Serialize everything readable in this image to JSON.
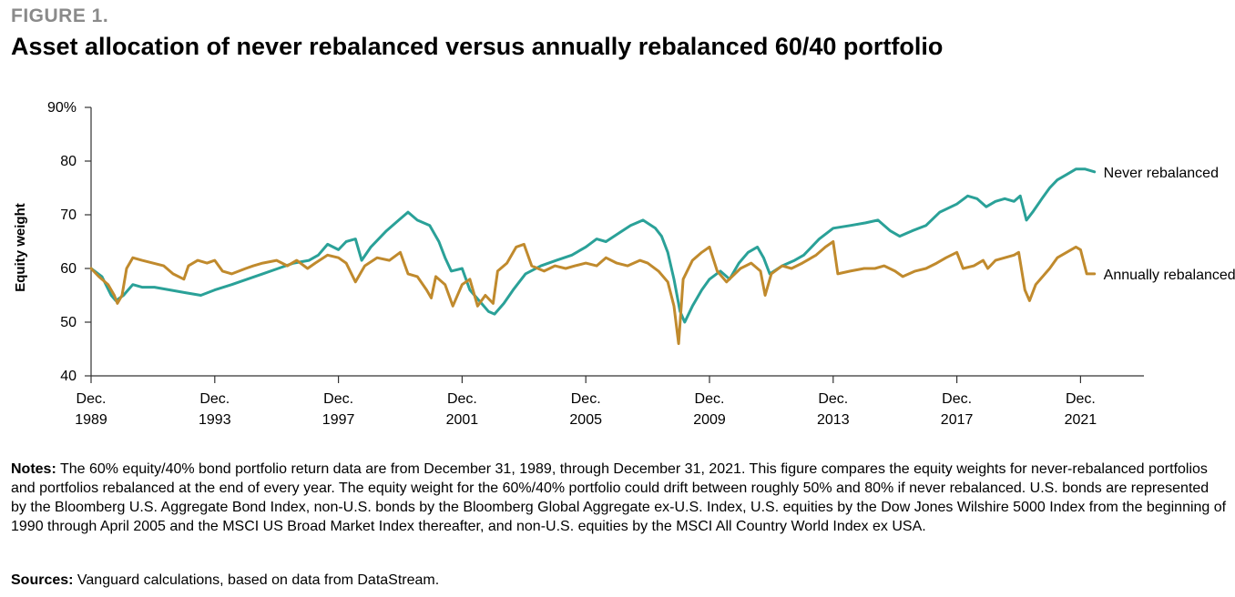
{
  "figure_label": "FIGURE 1.",
  "title": "Asset allocation of never rebalanced versus annually rebalanced 60/40 portfolio",
  "notes": {
    "label": "Notes:",
    "text": " The 60% equity/40% bond portfolio return data are from December 31, 1989, through December 31, 2021. This figure compares the equity weights for never-rebalanced portfolios and portfolios rebalanced at the end of every year. The equity weight for the 60%/40% portfolio could drift between roughly 50% and 80% if never rebalanced. U.S. bonds are represented by the Bloomberg U.S. Aggregate Bond Index, non-U.S. bonds by the Bloomberg Global Aggregate ex-U.S. Index, U.S. equities by the Dow Jones Wilshire 5000 Index from the beginning of 1990 through April 2005 and the MSCI US Broad Market Index thereafter, and non-U.S. equities by the MSCI All Country World Index ex USA."
  },
  "sources": {
    "label": "Sources:",
    "text": " Vanguard calculations, based on data from DataStream."
  },
  "colors": {
    "never": "#2aa198",
    "annual": "#c08a2d",
    "axis": "#333333"
  },
  "chart_data": {
    "type": "line",
    "title": "",
    "xlabel": "",
    "ylabel": "Equity weight",
    "ylim": [
      40,
      90
    ],
    "yticks": [
      {
        "value": 40,
        "label": "40"
      },
      {
        "value": 50,
        "label": "50"
      },
      {
        "value": 60,
        "label": "60"
      },
      {
        "value": 70,
        "label": "70"
      },
      {
        "value": 80,
        "label": "80"
      },
      {
        "value": 90,
        "label": "90%"
      }
    ],
    "xlim": [
      1989.95,
      2024.0
    ],
    "xticks": [
      {
        "value": 1989.95,
        "line1": "Dec.",
        "line2": "1989"
      },
      {
        "value": 1993.95,
        "line1": "Dec.",
        "line2": "1993"
      },
      {
        "value": 1997.95,
        "line1": "Dec.",
        "line2": "1997"
      },
      {
        "value": 2001.95,
        "line1": "Dec.",
        "line2": "2001"
      },
      {
        "value": 2005.95,
        "line1": "Dec.",
        "line2": "2005"
      },
      {
        "value": 2009.95,
        "line1": "Dec.",
        "line2": "2009"
      },
      {
        "value": 2013.95,
        "line1": "Dec.",
        "line2": "2013"
      },
      {
        "value": 2017.95,
        "line1": "Dec.",
        "line2": "2017"
      },
      {
        "value": 2021.95,
        "line1": "Dec.",
        "line2": "2021"
      }
    ],
    "grid": false,
    "legend": "inline labels at right end of lines",
    "series": [
      {
        "name": "Never rebalanced",
        "color": "#2aa198",
        "points": [
          [
            1989.95,
            60.0
          ],
          [
            1990.3,
            58.5
          ],
          [
            1990.6,
            55.0
          ],
          [
            1990.75,
            54.0
          ],
          [
            1991.0,
            55.0
          ],
          [
            1991.3,
            57.0
          ],
          [
            1991.6,
            56.5
          ],
          [
            1992.0,
            56.5
          ],
          [
            1992.5,
            56.0
          ],
          [
            1993.0,
            55.5
          ],
          [
            1993.5,
            55.0
          ],
          [
            1993.95,
            56.0
          ],
          [
            1994.5,
            57.0
          ],
          [
            1995.0,
            58.0
          ],
          [
            1995.5,
            59.0
          ],
          [
            1996.0,
            60.0
          ],
          [
            1996.5,
            61.0
          ],
          [
            1997.0,
            61.5
          ],
          [
            1997.3,
            62.5
          ],
          [
            1997.6,
            64.5
          ],
          [
            1997.95,
            63.5
          ],
          [
            1998.2,
            65.0
          ],
          [
            1998.5,
            65.5
          ],
          [
            1998.7,
            61.5
          ],
          [
            1999.0,
            64.0
          ],
          [
            1999.5,
            67.0
          ],
          [
            1999.9,
            69.0
          ],
          [
            2000.2,
            70.5
          ],
          [
            2000.5,
            69.0
          ],
          [
            2000.9,
            68.0
          ],
          [
            2001.2,
            65.0
          ],
          [
            2001.4,
            62.0
          ],
          [
            2001.6,
            59.5
          ],
          [
            2001.95,
            60.0
          ],
          [
            2002.2,
            56.0
          ],
          [
            2002.5,
            54.0
          ],
          [
            2002.8,
            52.0
          ],
          [
            2003.0,
            51.5
          ],
          [
            2003.3,
            53.5
          ],
          [
            2003.6,
            56.0
          ],
          [
            2004.0,
            59.0
          ],
          [
            2004.5,
            60.5
          ],
          [
            2005.0,
            61.5
          ],
          [
            2005.5,
            62.5
          ],
          [
            2005.95,
            64.0
          ],
          [
            2006.3,
            65.5
          ],
          [
            2006.6,
            65.0
          ],
          [
            2007.0,
            66.5
          ],
          [
            2007.4,
            68.0
          ],
          [
            2007.8,
            69.0
          ],
          [
            2008.2,
            67.5
          ],
          [
            2008.4,
            66.0
          ],
          [
            2008.6,
            63.0
          ],
          [
            2008.8,
            58.0
          ],
          [
            2009.0,
            52.0
          ],
          [
            2009.15,
            50.0
          ],
          [
            2009.4,
            53.0
          ],
          [
            2009.7,
            56.0
          ],
          [
            2009.95,
            58.0
          ],
          [
            2010.3,
            59.5
          ],
          [
            2010.6,
            58.0
          ],
          [
            2010.9,
            61.0
          ],
          [
            2011.2,
            63.0
          ],
          [
            2011.5,
            64.0
          ],
          [
            2011.7,
            62.0
          ],
          [
            2011.9,
            59.0
          ],
          [
            2012.3,
            60.5
          ],
          [
            2012.7,
            61.5
          ],
          [
            2013.0,
            62.5
          ],
          [
            2013.5,
            65.5
          ],
          [
            2013.95,
            67.5
          ],
          [
            2014.5,
            68.0
          ],
          [
            2015.0,
            68.5
          ],
          [
            2015.4,
            69.0
          ],
          [
            2015.8,
            67.0
          ],
          [
            2016.1,
            66.0
          ],
          [
            2016.5,
            67.0
          ],
          [
            2016.95,
            68.0
          ],
          [
            2017.4,
            70.5
          ],
          [
            2017.95,
            72.0
          ],
          [
            2018.3,
            73.5
          ],
          [
            2018.6,
            73.0
          ],
          [
            2018.9,
            71.5
          ],
          [
            2019.2,
            72.5
          ],
          [
            2019.5,
            73.0
          ],
          [
            2019.8,
            72.5
          ],
          [
            2020.0,
            73.5
          ],
          [
            2020.2,
            69.0
          ],
          [
            2020.4,
            70.5
          ],
          [
            2020.7,
            73.0
          ],
          [
            2020.95,
            75.0
          ],
          [
            2021.2,
            76.5
          ],
          [
            2021.5,
            77.5
          ],
          [
            2021.8,
            78.5
          ],
          [
            2022.1,
            78.5
          ],
          [
            2022.4,
            78.0
          ]
        ]
      },
      {
        "name": "Annually rebalanced",
        "color": "#c08a2d",
        "points": [
          [
            1989.95,
            60.0
          ],
          [
            1990.2,
            58.5
          ],
          [
            1990.5,
            57.0
          ],
          [
            1990.7,
            55.0
          ],
          [
            1990.8,
            53.5
          ],
          [
            1990.95,
            55.0
          ],
          [
            1991.1,
            60.0
          ],
          [
            1991.3,
            62.0
          ],
          [
            1991.6,
            61.5
          ],
          [
            1991.95,
            61.0
          ],
          [
            1992.3,
            60.5
          ],
          [
            1992.6,
            59.0
          ],
          [
            1992.95,
            58.0
          ],
          [
            1993.1,
            60.5
          ],
          [
            1993.4,
            61.5
          ],
          [
            1993.7,
            61.0
          ],
          [
            1993.95,
            61.5
          ],
          [
            1994.2,
            59.5
          ],
          [
            1994.5,
            59.0
          ],
          [
            1994.95,
            60.0
          ],
          [
            1995.2,
            60.5
          ],
          [
            1995.5,
            61.0
          ],
          [
            1995.95,
            61.5
          ],
          [
            1996.3,
            60.5
          ],
          [
            1996.6,
            61.5
          ],
          [
            1996.95,
            60.0
          ],
          [
            1997.2,
            61.0
          ],
          [
            1997.6,
            62.5
          ],
          [
            1997.95,
            62.0
          ],
          [
            1998.2,
            61.0
          ],
          [
            1998.5,
            57.5
          ],
          [
            1998.8,
            60.5
          ],
          [
            1999.2,
            62.0
          ],
          [
            1999.6,
            61.5
          ],
          [
            1999.95,
            63.0
          ],
          [
            2000.2,
            59.0
          ],
          [
            2000.5,
            58.5
          ],
          [
            2000.8,
            56.0
          ],
          [
            2000.95,
            54.5
          ],
          [
            2001.1,
            58.5
          ],
          [
            2001.4,
            57.0
          ],
          [
            2001.65,
            53.0
          ],
          [
            2001.95,
            57.0
          ],
          [
            2002.2,
            58.0
          ],
          [
            2002.45,
            53.0
          ],
          [
            2002.7,
            55.0
          ],
          [
            2002.95,
            53.5
          ],
          [
            2003.1,
            59.5
          ],
          [
            2003.4,
            61.0
          ],
          [
            2003.7,
            64.0
          ],
          [
            2003.95,
            64.5
          ],
          [
            2004.2,
            60.5
          ],
          [
            2004.6,
            59.5
          ],
          [
            2004.95,
            60.5
          ],
          [
            2005.3,
            60.0
          ],
          [
            2005.6,
            60.5
          ],
          [
            2005.95,
            61.0
          ],
          [
            2006.3,
            60.5
          ],
          [
            2006.6,
            62.0
          ],
          [
            2006.95,
            61.0
          ],
          [
            2007.3,
            60.5
          ],
          [
            2007.7,
            61.5
          ],
          [
            2007.95,
            61.0
          ],
          [
            2008.3,
            59.5
          ],
          [
            2008.6,
            57.5
          ],
          [
            2008.8,
            53.0
          ],
          [
            2008.95,
            46.0
          ],
          [
            2009.1,
            58.0
          ],
          [
            2009.4,
            61.5
          ],
          [
            2009.7,
            63.0
          ],
          [
            2009.95,
            64.0
          ],
          [
            2010.2,
            59.5
          ],
          [
            2010.5,
            57.5
          ],
          [
            2010.95,
            60.0
          ],
          [
            2011.3,
            61.0
          ],
          [
            2011.6,
            59.5
          ],
          [
            2011.75,
            55.0
          ],
          [
            2011.95,
            59.0
          ],
          [
            2012.3,
            60.5
          ],
          [
            2012.6,
            60.0
          ],
          [
            2012.95,
            61.0
          ],
          [
            2013.4,
            62.5
          ],
          [
            2013.7,
            64.0
          ],
          [
            2013.95,
            65.0
          ],
          [
            2014.1,
            59.0
          ],
          [
            2014.5,
            59.5
          ],
          [
            2014.95,
            60.0
          ],
          [
            2015.3,
            60.0
          ],
          [
            2015.6,
            60.5
          ],
          [
            2015.95,
            59.5
          ],
          [
            2016.2,
            58.5
          ],
          [
            2016.6,
            59.5
          ],
          [
            2016.95,
            60.0
          ],
          [
            2017.3,
            61.0
          ],
          [
            2017.6,
            62.0
          ],
          [
            2017.95,
            63.0
          ],
          [
            2018.15,
            60.0
          ],
          [
            2018.5,
            60.5
          ],
          [
            2018.8,
            61.5
          ],
          [
            2018.95,
            60.0
          ],
          [
            2019.2,
            61.5
          ],
          [
            2019.5,
            62.0
          ],
          [
            2019.8,
            62.5
          ],
          [
            2019.95,
            63.0
          ],
          [
            2020.15,
            56.0
          ],
          [
            2020.3,
            54.0
          ],
          [
            2020.5,
            57.0
          ],
          [
            2020.8,
            59.0
          ],
          [
            2020.95,
            60.0
          ],
          [
            2021.2,
            62.0
          ],
          [
            2021.5,
            63.0
          ],
          [
            2021.8,
            64.0
          ],
          [
            2021.95,
            63.5
          ],
          [
            2022.15,
            59.0
          ],
          [
            2022.4,
            59.0
          ]
        ]
      }
    ]
  }
}
